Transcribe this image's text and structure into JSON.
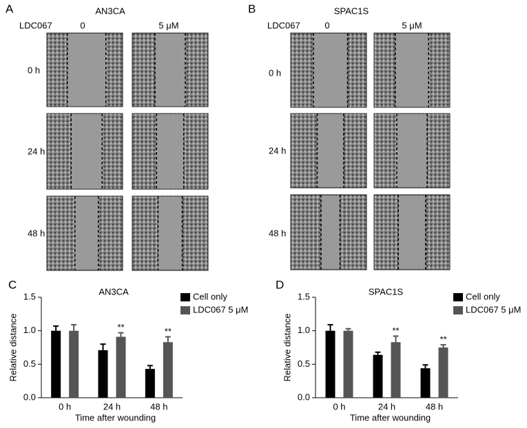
{
  "panels": [
    {
      "label": "A",
      "title": "AN3CA",
      "treatment": "LDC067",
      "columns": [
        "0",
        "5 μM"
      ],
      "rows": [
        "0 h",
        "24 h",
        "48 h"
      ]
    },
    {
      "label": "B",
      "title": "SPAC1S",
      "treatment": "LDC067",
      "columns": [
        "0",
        "5 μM"
      ],
      "rows": [
        "0 h",
        "24 h",
        "48 h"
      ]
    }
  ],
  "chart_data": [
    {
      "type": "bar",
      "panel_label": "C",
      "title": "AN3CA",
      "x_label": "Time after wounding",
      "y_label": "Relative distance",
      "categories": [
        "0 h",
        "24 h",
        "48 h"
      ],
      "series": [
        {
          "name": "Cell only",
          "color": "#000000",
          "values": [
            1.0,
            0.71,
            0.43
          ],
          "errors": [
            0.07,
            0.09,
            0.05
          ],
          "marks": [
            null,
            null,
            null
          ]
        },
        {
          "name": "LDC067 5 μM",
          "color": "#555555",
          "values": [
            1.0,
            0.91,
            0.83
          ],
          "errors": [
            0.09,
            0.06,
            0.08
          ],
          "marks": [
            null,
            "**",
            "**"
          ]
        }
      ],
      "ylim": [
        0,
        1.5
      ],
      "yticks": [
        {
          "value": 0,
          "label": "0.0"
        },
        0.5,
        {
          "value": 1,
          "label": "1.0"
        },
        1.5
      ],
      "legend": "upper right"
    },
    {
      "type": "bar",
      "panel_label": "D",
      "title": "SPAC1S",
      "x_label": "Time after wounding",
      "y_label": "Relative distance",
      "categories": [
        "0 h",
        "24 h",
        "48 h"
      ],
      "series": [
        {
          "name": "Cell only",
          "color": "#000000",
          "values": [
            1.0,
            0.64,
            0.44
          ],
          "errors": [
            0.09,
            0.04,
            0.05
          ],
          "marks": [
            null,
            null,
            null
          ]
        },
        {
          "name": "LDC067 5 μM",
          "color": "#555555",
          "values": [
            1.0,
            0.83,
            0.75
          ],
          "errors": [
            0.03,
            0.09,
            0.04
          ],
          "marks": [
            null,
            "**",
            "**"
          ]
        }
      ],
      "ylim": [
        0,
        1.5
      ],
      "yticks": [
        {
          "value": 0,
          "label": "0.0"
        },
        0.5,
        {
          "value": 1,
          "label": "1.0"
        },
        1.5
      ],
      "legend": "upper right"
    }
  ]
}
